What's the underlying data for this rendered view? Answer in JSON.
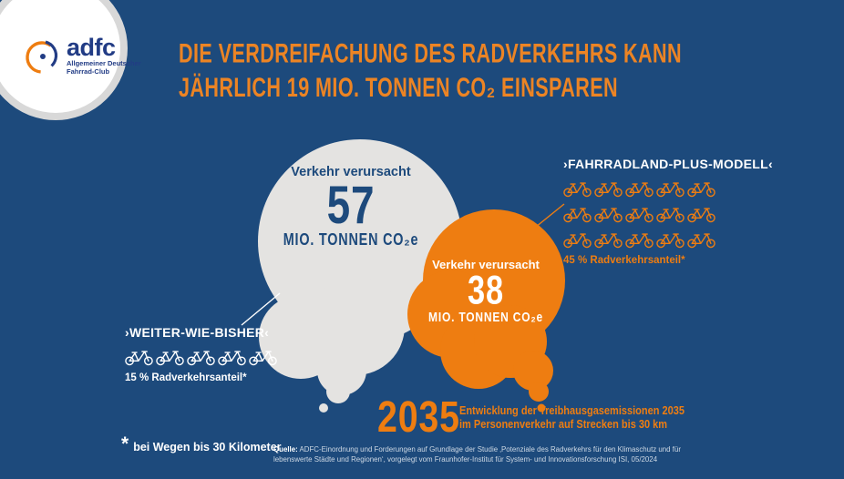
{
  "colors": {
    "background": "#1d4a7c",
    "orange": "#ee7d11",
    "title_orange": "#ec8424",
    "cloud_gray": "#e4e3e1",
    "navy": "#1d4a7c",
    "logo_blue": "#223c85",
    "ring_gray": "#d8d8d8",
    "source_text": "#cdd8e4"
  },
  "logo": {
    "brand": "adfc",
    "subline1": "Allgemeiner Deutscher",
    "subline2": "Fahrrad-Club"
  },
  "headline": {
    "line1": "DIE VERDREIFACHUNG DES RADVERKEHRS KANN",
    "line2": "JÄHRLICH 19 MIO. TONNEN CO₂ EINSPAREN"
  },
  "clouds": {
    "baseline": {
      "intro": "Verkehr verursacht",
      "value": "57",
      "unit": "MIO. TONNEN CO₂e"
    },
    "plus": {
      "intro": "Verkehr verursacht",
      "value": "38",
      "unit": "MIO. TONNEN CO₂e"
    }
  },
  "scenarios": {
    "baseline": {
      "label": "›WEITER-WIE-BISHER‹",
      "share": "15 % Radverkehrsanteil*",
      "bike_count": 5,
      "bike_color": "#ffffff"
    },
    "plus": {
      "label": "›FAHRRADLAND-PLUS-MODELL‹",
      "share": "45 % Radverkehrsanteil*",
      "bike_count": 15,
      "bike_color": "#ee7d11"
    }
  },
  "year_note": {
    "year": "2035",
    "line1": "Entwicklung der Treibhausgasemissionen 2035",
    "line2": "im Personenverkehr auf Strecken bis 30 km"
  },
  "footnote": {
    "symbol": "*",
    "text": "bei Wegen bis 30 Kilometer"
  },
  "source": {
    "label": "Quelle:",
    "line1": "ADFC-Einordnung und Forderungen auf Grundlage der Studie ‚Potenziale des Radverkehrs für den Klimaschutz und für",
    "line2": "lebenswerte Städte und Regionen‘, vorgelegt vom Fraunhofer-Institut für System- und Innovationsforschung ISI, 05/2024"
  },
  "chart_data": {
    "type": "bar",
    "rendered_as": "proportional-thought-bubbles",
    "title": "Die Verdreifachung des Radverkehrs kann jährlich 19 Mio. Tonnen CO₂ einsparen",
    "categories": [
      "Weiter-wie-bisher (15 % Radverkehrsanteil)",
      "Fahrradland-Plus-Modell (45 % Radverkehrsanteil)"
    ],
    "values": [
      57,
      38
    ],
    "unit": "Mio. Tonnen CO₂e",
    "savings": 19,
    "year": 2035,
    "annotation": "Entwicklung der Treibhausgasemissionen 2035 im Personenverkehr auf Strecken bis 30 km",
    "footnote": "bei Wegen bis 30 Kilometer"
  }
}
